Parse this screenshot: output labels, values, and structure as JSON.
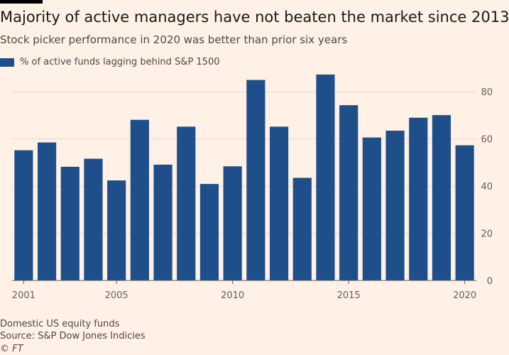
{
  "header": {
    "title": "Majority of active managers have not beaten the market since 2013",
    "subtitle": "Stock picker performance in 2020 was better than prior six years"
  },
  "footer": {
    "note": "Domestic US equity funds",
    "source": "Source: S&P Dow Jones Indicies",
    "copyright": "© FT"
  },
  "colors": {
    "bar": "#1e4f8b",
    "background": "#fff1e5",
    "grid": "#e6d9ce",
    "axis": "#66605c",
    "accent_bar": "#000000"
  },
  "chart_data": {
    "type": "bar",
    "title": "Majority of active managers have not beaten the market since 2013",
    "subtitle": "Stock picker performance in 2020 was better than prior six years",
    "xlabel": "",
    "ylabel": "",
    "categories": [
      "2001",
      "2002",
      "2003",
      "2004",
      "2005",
      "2006",
      "2007",
      "2008",
      "2009",
      "2010",
      "2011",
      "2012",
      "2013",
      "2014",
      "2015",
      "2016",
      "2017",
      "2018",
      "2019",
      "2020"
    ],
    "x_tick_labels": [
      "2001",
      "2005",
      "2010",
      "2015",
      "2020"
    ],
    "series": [
      {
        "name": "% of active funds lagging behind S&P 1500",
        "values": [
          55.2,
          58.5,
          48.2,
          51.6,
          42.4,
          68.1,
          49.1,
          65.2,
          40.9,
          48.4,
          85.0,
          65.2,
          43.5,
          87.3,
          74.3,
          60.6,
          63.5,
          69.0,
          70.1,
          57.3
        ]
      }
    ],
    "ylim": [
      0,
      90
    ],
    "y_ticks": [
      0,
      20,
      40,
      60,
      80
    ],
    "y_axis_side": "right",
    "grid": true,
    "legend_position": "top-left"
  }
}
